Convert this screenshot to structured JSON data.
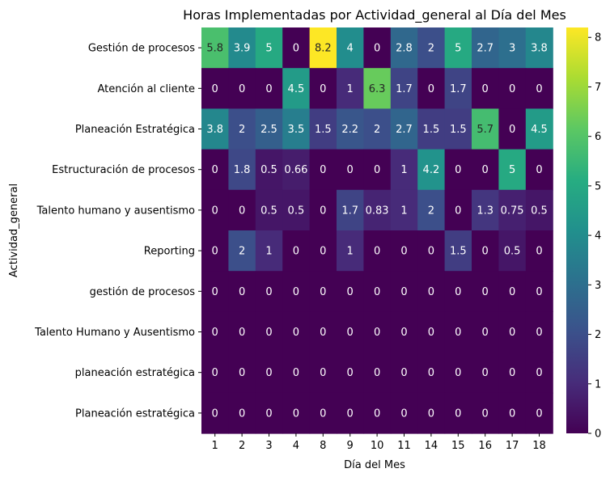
{
  "chart_data": {
    "type": "heatmap",
    "title": "Horas Implementadas por Actividad_general al Día del Mes",
    "xlabel": "Día del Mes",
    "ylabel": "Actividad_general",
    "x": [
      "1",
      "2",
      "3",
      "4",
      "8",
      "9",
      "10",
      "11",
      "14",
      "15",
      "16",
      "17",
      "18"
    ],
    "y": [
      "Gestión de procesos",
      "Atención al cliente",
      "Planeación Estratégica",
      "Estructuración de procesos",
      "Talento humano y ausentismo",
      "Reporting",
      "gestión de procesos",
      "Talento Humano y Ausentismo",
      "planeación estratégica",
      "Planeación estratégica"
    ],
    "values": [
      [
        5.8,
        3.9,
        5,
        0,
        8.2,
        4,
        0,
        2.8,
        2,
        5,
        2.7,
        3,
        3.8
      ],
      [
        0,
        0,
        0,
        4.5,
        0,
        1,
        6.3,
        1.7,
        0,
        1.7,
        0,
        0,
        0
      ],
      [
        3.8,
        2,
        2.5,
        3.5,
        1.5,
        2.2,
        2,
        2.7,
        1.5,
        1.5,
        5.7,
        0,
        4.5
      ],
      [
        0,
        1.8,
        0.5,
        0.66,
        0,
        0,
        0,
        1,
        4.2,
        0,
        0,
        5,
        0
      ],
      [
        0,
        0,
        0.5,
        0.5,
        0,
        1.7,
        0.83,
        1,
        2,
        0,
        1.3,
        0.75,
        0.5
      ],
      [
        0,
        2,
        1,
        0,
        0,
        1,
        0,
        0,
        0,
        1.5,
        0,
        0.5,
        0
      ],
      [
        0,
        0,
        0,
        0,
        0,
        0,
        0,
        0,
        0,
        0,
        0,
        0,
        0
      ],
      [
        0,
        0,
        0,
        0,
        0,
        0,
        0,
        0,
        0,
        0,
        0,
        0,
        0
      ],
      [
        0,
        0,
        0,
        0,
        0,
        0,
        0,
        0,
        0,
        0,
        0,
        0,
        0
      ],
      [
        0,
        0,
        0,
        0,
        0,
        0,
        0,
        0,
        0,
        0,
        0,
        0,
        0
      ]
    ],
    "colormap": "viridis",
    "value_range": [
      0,
      8.2
    ],
    "colorbar_ticks": [
      "0",
      "1",
      "2",
      "3",
      "4",
      "5",
      "6",
      "7",
      "8"
    ],
    "grid": false
  }
}
